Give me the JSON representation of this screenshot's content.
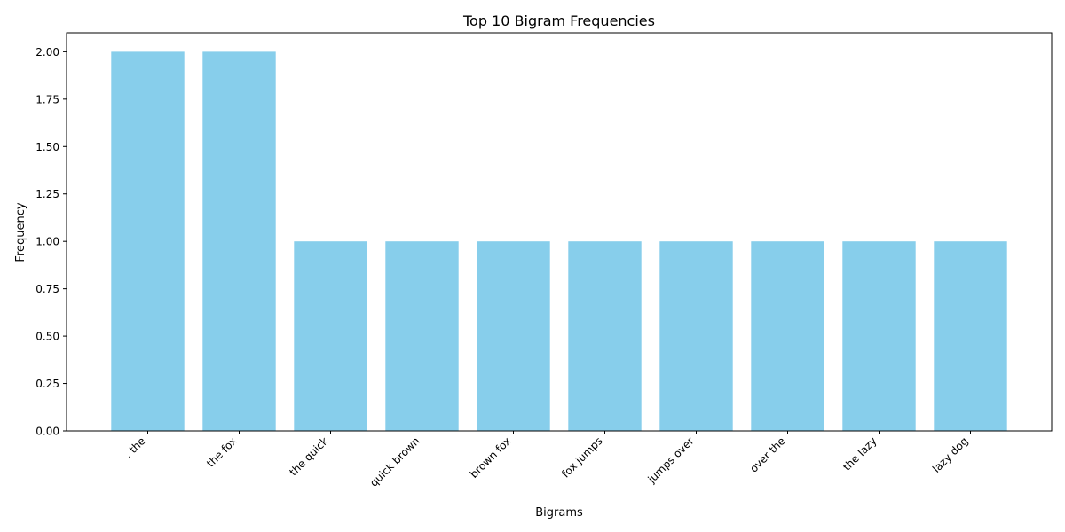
{
  "chart_data": {
    "type": "bar",
    "title": "Top 10 Bigram Frequencies",
    "xlabel": "Bigrams",
    "ylabel": "Frequency",
    "categories": [
      ". the",
      "the fox",
      "the quick",
      "quick brown",
      "brown fox",
      "fox jumps",
      "jumps over",
      "over the",
      "the lazy",
      "lazy dog"
    ],
    "values": [
      2,
      2,
      1,
      1,
      1,
      1,
      1,
      1,
      1,
      1
    ],
    "ylim": [
      0,
      2.1
    ],
    "yticks": [
      "0.00",
      "0.25",
      "0.50",
      "0.75",
      "1.00",
      "1.25",
      "1.50",
      "1.75",
      "2.00"
    ],
    "bar_color": "#87ceeb",
    "grid": false,
    "legend": "none"
  }
}
